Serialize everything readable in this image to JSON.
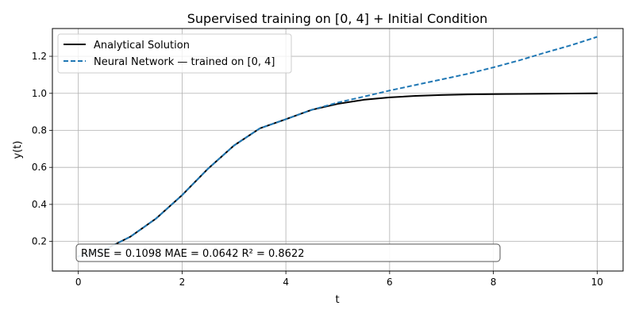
{
  "chart_data": {
    "type": "line",
    "title": "Supervised training on [0, 4] + Initial Condition",
    "xlabel": "t",
    "ylabel": "y(t)",
    "xlim": [
      -0.5,
      10.5
    ],
    "ylim": [
      0.04,
      1.35
    ],
    "xticks": [
      0,
      2,
      4,
      6,
      8,
      10
    ],
    "yticks": [
      0.2,
      0.4,
      0.6,
      0.8,
      1.0,
      1.2
    ],
    "grid": true,
    "legend_position": "top-left",
    "series": [
      {
        "name": "Analytical Solution",
        "color": "#000000",
        "style": "solid",
        "x": [
          0,
          0.5,
          1,
          1.5,
          2,
          2.5,
          3,
          3.5,
          4,
          4.5,
          5,
          5.5,
          6,
          6.5,
          7,
          7.5,
          8,
          8.5,
          9,
          9.5,
          10
        ],
        "y": [
          0.119,
          0.155,
          0.225,
          0.324,
          0.45,
          0.593,
          0.718,
          0.811,
          0.86,
          0.911,
          0.943,
          0.965,
          0.978,
          0.986,
          0.991,
          0.994,
          0.996,
          0.997,
          0.998,
          0.999,
          1.0
        ]
      },
      {
        "name": "Neural Network — trained on [0, 4]",
        "color": "#1f77b4",
        "style": "dashed",
        "x": [
          0,
          0.5,
          1,
          1.5,
          2,
          2.5,
          3,
          3.5,
          4,
          4.5,
          5,
          5.5,
          6,
          6.5,
          7,
          7.5,
          8,
          8.5,
          9,
          9.5,
          10
        ],
        "y": [
          0.119,
          0.155,
          0.225,
          0.324,
          0.45,
          0.593,
          0.718,
          0.811,
          0.86,
          0.911,
          0.95,
          0.982,
          1.015,
          1.045,
          1.075,
          1.105,
          1.14,
          1.178,
          1.22,
          1.26,
          1.305
        ]
      }
    ],
    "annotation": "RMSE = 0.1098 MAE = 0.0642 R² = 0.8622"
  }
}
